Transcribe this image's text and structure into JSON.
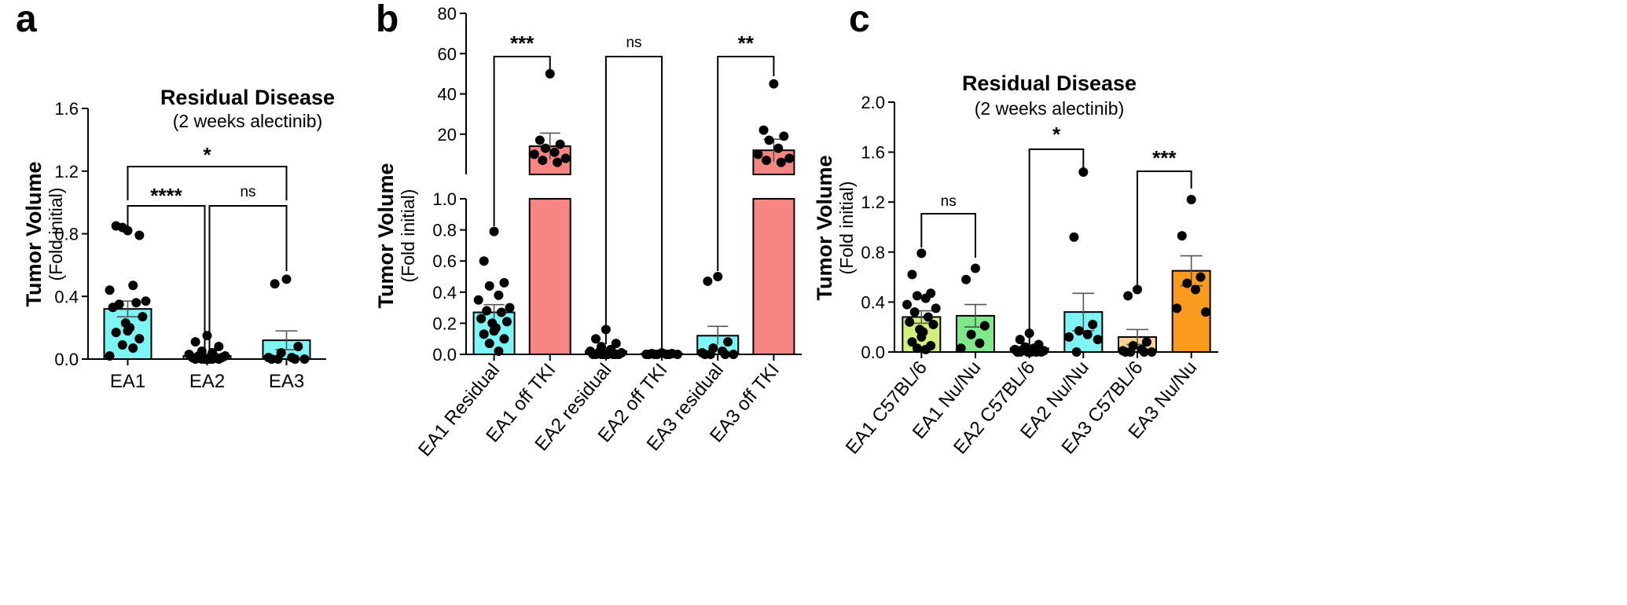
{
  "colors": {
    "cyan": "#7ef5f5",
    "salmon": "#f78683",
    "lightgreen": "#d2f07c",
    "green": "#7ee88a",
    "peach": "#fbd393",
    "orange": "#fa9a1e",
    "ink": "#000000"
  },
  "chart_data": [
    {
      "panel": "a",
      "type": "bar",
      "title": "Residual Disease",
      "subtitle": "(2 weeks alectinib)",
      "ylabel": "Tumor Volume",
      "ylabel_sub": "(Fold initial)",
      "ylim": [
        0,
        1.6
      ],
      "yticks": [
        "0.0",
        "0.4",
        "0.8",
        "1.2",
        "1.6"
      ],
      "categories": [
        "EA1",
        "EA2",
        "EA3"
      ],
      "values": [
        0.32,
        0.02,
        0.12
      ],
      "sem": [
        0.05,
        0.015,
        0.06
      ],
      "points": [
        [
          0.82,
          0.85,
          0.79,
          0.84,
          0.47,
          0.44,
          0.37,
          0.35,
          0.36,
          0.33,
          0.27,
          0.23,
          0.2,
          0.18,
          0.17,
          0.13,
          0.09,
          0.07,
          0.02
        ],
        [
          0.15,
          0.11,
          0.08,
          0.05,
          0.04,
          0.03,
          0.02,
          0.02,
          0.01,
          0.01,
          0.01,
          0.0,
          0.0,
          0.0,
          0.0,
          0.0,
          0.0,
          0.0
        ],
        [
          0.51,
          0.48,
          0.08,
          0.04,
          0.01,
          0.01,
          0.0,
          0.0,
          0.0,
          0.0
        ]
      ],
      "comparisons": [
        {
          "from": 0,
          "to": 1,
          "label": "****"
        },
        {
          "from": 1,
          "to": 2,
          "label": "ns"
        },
        {
          "from": 0,
          "to": 2,
          "label": "*"
        }
      ]
    },
    {
      "panel": "b",
      "type": "bar",
      "title": "",
      "ylabel": "Tumor Volume",
      "ylabel_sub": "(Fold initial)",
      "broken_axis": {
        "lower": [
          0,
          1.0
        ],
        "upper": [
          0,
          80
        ]
      },
      "yticks_lower": [
        "0.0",
        "0.2",
        "0.4",
        "0.6",
        "0.8",
        "1.0"
      ],
      "yticks_upper": [
        "20",
        "40",
        "60",
        "80"
      ],
      "categories": [
        "EA1 Residual",
        "EA1 off TKI",
        "EA2 residual",
        "EA2 off TKI",
        "EA3 residual",
        "EA3 off TKI"
      ],
      "values": [
        0.27,
        14,
        0.02,
        0.005,
        0.12,
        12
      ],
      "sem": [
        0.05,
        6.5,
        0.015,
        0.003,
        0.06,
        5.5
      ],
      "points": [
        [
          0.79,
          0.6,
          0.46,
          0.44,
          0.38,
          0.35,
          0.3,
          0.28,
          0.27,
          0.23,
          0.21,
          0.2,
          0.17,
          0.15,
          0.13,
          0.1,
          0.07,
          0.02
        ],
        [
          50,
          17,
          15,
          13,
          11,
          10,
          8,
          7,
          6
        ],
        [
          0.16,
          0.1,
          0.07,
          0.05,
          0.03,
          0.02,
          0.01,
          0.01,
          0.0,
          0.0,
          0.0,
          0.0,
          0.0,
          0.0,
          0.0,
          0.0,
          0.0
        ],
        [
          0.01,
          0.005,
          0.005,
          0.0,
          0.0,
          0.0,
          0.0,
          0.0,
          0.0,
          0.0
        ],
        [
          0.5,
          0.47,
          0.08,
          0.04,
          0.02,
          0.01,
          0.0,
          0.0,
          0.0,
          0.0
        ],
        [
          45,
          22,
          19,
          17,
          13,
          10,
          8,
          7,
          6
        ]
      ],
      "comparisons": [
        {
          "from": 0,
          "to": 1,
          "label": "***"
        },
        {
          "from": 2,
          "to": 3,
          "label": "ns"
        },
        {
          "from": 4,
          "to": 5,
          "label": "**"
        }
      ]
    },
    {
      "panel": "c",
      "type": "bar",
      "title": "Residual Disease",
      "subtitle": "(2 weeks alectinib)",
      "ylabel": "Tumor Volume",
      "ylabel_sub": "(Fold initial)",
      "ylim": [
        0,
        2.0
      ],
      "yticks": [
        "0.0",
        "0.4",
        "0.8",
        "1.2",
        "1.6",
        "2.0"
      ],
      "categories": [
        "EA1 C57BL/6",
        "EA1 Nu/Nu",
        "EA2 C57BL/6",
        "EA2 Nu/Nu",
        "EA3 C57BL/6",
        "EA3 Nu/Nu"
      ],
      "values": [
        0.28,
        0.29,
        0.03,
        0.32,
        0.12,
        0.65
      ],
      "sem": [
        0.05,
        0.09,
        0.015,
        0.15,
        0.06,
        0.12
      ],
      "points": [
        [
          0.79,
          0.62,
          0.47,
          0.45,
          0.43,
          0.38,
          0.35,
          0.32,
          0.28,
          0.24,
          0.22,
          0.18,
          0.16,
          0.12,
          0.08,
          0.05,
          0.03,
          0.02
        ],
        [
          0.67,
          0.58,
          0.21,
          0.14,
          0.07,
          0.03
        ],
        [
          0.15,
          0.1,
          0.06,
          0.04,
          0.03,
          0.02,
          0.01,
          0.01,
          0.0,
          0.0,
          0.0,
          0.0,
          0.0,
          0.0,
          0.0
        ],
        [
          1.44,
          0.92,
          0.22,
          0.17,
          0.14,
          0.12,
          0.1,
          0.0
        ],
        [
          0.5,
          0.45,
          0.08,
          0.05,
          0.02,
          0.01,
          0.0,
          0.0,
          0.0,
          0.0
        ],
        [
          1.22,
          0.93,
          0.6,
          0.55,
          0.5,
          0.35,
          0.32
        ]
      ],
      "comparisons": [
        {
          "from": 0,
          "to": 1,
          "label": "ns"
        },
        {
          "from": 2,
          "to": 3,
          "label": "*"
        },
        {
          "from": 4,
          "to": 5,
          "label": "***"
        }
      ]
    }
  ]
}
